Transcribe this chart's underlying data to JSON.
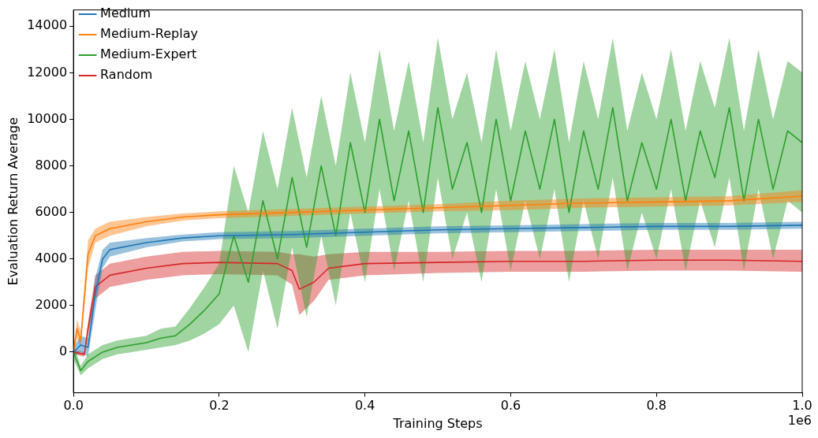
{
  "chart_data": {
    "type": "line",
    "xlabel": "Training Steps",
    "ylabel": "Evaluation Return Average",
    "annotations": [
      "1e6"
    ],
    "xlim": [
      0,
      1
    ],
    "ylim": [
      -1750,
      14700
    ],
    "xticks": [
      {
        "value": 0,
        "label": "0.0"
      },
      {
        "value": 0.2,
        "label": "0.2"
      },
      {
        "value": 0.4,
        "label": "0.4"
      },
      {
        "value": 0.6,
        "label": "0.6"
      },
      {
        "value": 0.8,
        "label": "0.8"
      },
      {
        "value": 1,
        "label": "1.0"
      }
    ],
    "yticks": [
      0,
      2000,
      4000,
      6000,
      8000,
      10000,
      12000,
      14000
    ],
    "grid": false,
    "legend": "top left",
    "marker": "none",
    "line_style": "solid",
    "series": [
      {
        "name": "Medium",
        "color": "#1f77b4",
        "x": [
          0,
          0.01,
          0.02,
          0.03,
          0.04,
          0.05,
          0.1,
          0.15,
          0.2,
          0.3,
          0.4,
          0.5,
          0.6,
          0.7,
          0.8,
          0.9,
          1.0
        ],
        "values": [
          0,
          300,
          200,
          2500,
          4000,
          4400,
          4700,
          4900,
          5000,
          5050,
          5150,
          5250,
          5300,
          5350,
          5400,
          5400,
          5450
        ],
        "lower": [
          -200,
          0,
          -200,
          1800,
          3600,
          4100,
          4500,
          4750,
          4850,
          4900,
          5000,
          5100,
          5150,
          5200,
          5250,
          5250,
          5300
        ],
        "upper": [
          200,
          700,
          600,
          3200,
          4400,
          4700,
          4900,
          5050,
          5150,
          5200,
          5300,
          5400,
          5450,
          5500,
          5550,
          5550,
          5600
        ]
      },
      {
        "name": "Medium-Replay",
        "color": "#ff7f0e",
        "x": [
          0,
          0.005,
          0.01,
          0.02,
          0.03,
          0.05,
          0.1,
          0.15,
          0.2,
          0.3,
          0.4,
          0.5,
          0.6,
          0.7,
          0.8,
          0.9,
          1.0
        ],
        "values": [
          0,
          1000,
          500,
          4200,
          5000,
          5300,
          5600,
          5800,
          5900,
          6000,
          6100,
          6200,
          6300,
          6400,
          6450,
          6500,
          6700
        ],
        "lower": [
          -200,
          600,
          200,
          3600,
          4700,
          5000,
          5400,
          5650,
          5750,
          5850,
          5950,
          6050,
          6100,
          6200,
          6250,
          6300,
          6450
        ],
        "upper": [
          200,
          1400,
          900,
          4800,
          5300,
          5600,
          5800,
          5950,
          6050,
          6150,
          6250,
          6350,
          6500,
          6600,
          6650,
          6700,
          6950
        ]
      },
      {
        "name": "Medium-Expert",
        "color": "#2ca02c",
        "x": [
          0,
          0.01,
          0.02,
          0.04,
          0.06,
          0.08,
          0.1,
          0.12,
          0.14,
          0.16,
          0.18,
          0.2,
          0.22,
          0.24,
          0.26,
          0.28,
          0.3,
          0.32,
          0.34,
          0.36,
          0.38,
          0.4,
          0.42,
          0.44,
          0.46,
          0.48,
          0.5,
          0.52,
          0.54,
          0.56,
          0.58,
          0.6,
          0.62,
          0.64,
          0.66,
          0.68,
          0.7,
          0.72,
          0.74,
          0.76,
          0.78,
          0.8,
          0.82,
          0.84,
          0.86,
          0.88,
          0.9,
          0.92,
          0.94,
          0.96,
          0.98,
          1.0
        ],
        "values": [
          0,
          -800,
          -400,
          0,
          200,
          300,
          400,
          600,
          700,
          1200,
          1800,
          2500,
          5000,
          3000,
          6500,
          4000,
          7500,
          4500,
          8000,
          5000,
          9000,
          6000,
          10000,
          6500,
          9500,
          6000,
          10500,
          7000,
          9000,
          6000,
          10000,
          6500,
          9500,
          7000,
          10000,
          6000,
          9500,
          7000,
          10500,
          6500,
          9000,
          7000,
          10000,
          6500,
          9500,
          7500,
          10500,
          6500,
          10000,
          7000,
          9500,
          9000
        ],
        "lower": [
          -300,
          -1000,
          -700,
          -300,
          -100,
          0,
          100,
          200,
          300,
          500,
          800,
          1200,
          2000,
          0,
          3500,
          1000,
          4500,
          1500,
          5000,
          2000,
          6000,
          3000,
          7000,
          3500,
          6500,
          3000,
          7500,
          4000,
          6000,
          3000,
          7000,
          3500,
          6500,
          4000,
          7000,
          3000,
          6500,
          4000,
          7500,
          3500,
          6000,
          4000,
          7000,
          3500,
          6500,
          4500,
          7500,
          3500,
          7000,
          4000,
          6500,
          6000
        ],
        "upper": [
          300,
          -600,
          -100,
          300,
          500,
          600,
          700,
          1000,
          1100,
          1900,
          2800,
          3800,
          8000,
          6000,
          9500,
          7000,
          10500,
          7500,
          11000,
          8000,
          12000,
          9000,
          13000,
          9500,
          12500,
          9000,
          13500,
          10000,
          12000,
          9000,
          13000,
          9500,
          12500,
          10000,
          13000,
          9000,
          12500,
          10000,
          13500,
          9500,
          12000,
          10000,
          13000,
          9500,
          12500,
          10500,
          13500,
          9500,
          13000,
          10000,
          12500,
          12000
        ]
      },
      {
        "name": "Random",
        "color": "#d62728",
        "x": [
          0,
          0.015,
          0.02,
          0.03,
          0.05,
          0.1,
          0.15,
          0.2,
          0.28,
          0.3,
          0.31,
          0.33,
          0.35,
          0.4,
          0.5,
          0.6,
          0.7,
          0.8,
          0.9,
          1.0
        ],
        "values": [
          0,
          -100,
          1000,
          2800,
          3300,
          3600,
          3800,
          3850,
          3800,
          3500,
          2700,
          3000,
          3600,
          3800,
          3850,
          3900,
          3900,
          3950,
          3950,
          3900
        ],
        "lower": [
          -100,
          -200,
          700,
          2300,
          2800,
          3100,
          3300,
          3350,
          3300,
          2900,
          1600,
          2200,
          3100,
          3300,
          3400,
          3450,
          3450,
          3500,
          3500,
          3450
        ],
        "upper": [
          100,
          0,
          1300,
          3300,
          3800,
          4100,
          4300,
          4350,
          4300,
          4200,
          4200,
          4100,
          4200,
          4300,
          4300,
          4350,
          4350,
          4400,
          4400,
          4400
        ]
      }
    ]
  }
}
